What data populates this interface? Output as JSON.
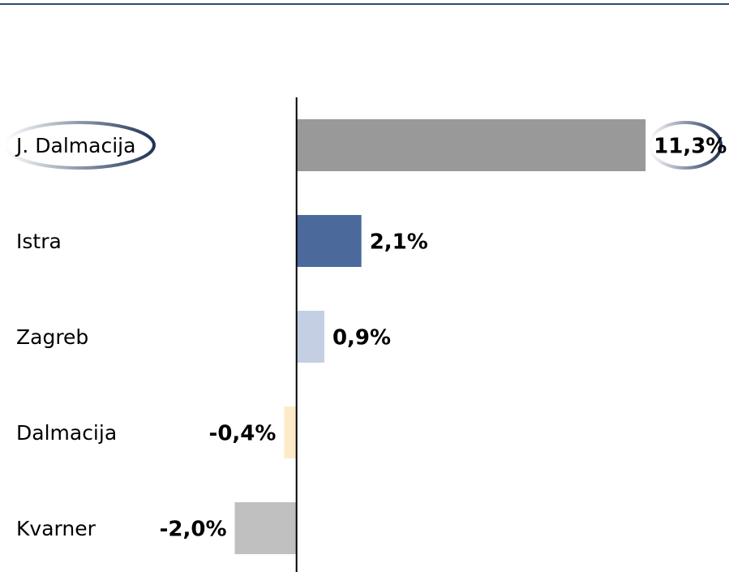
{
  "chart_data": {
    "type": "bar",
    "orientation": "horizontal",
    "categories": [
      "J. Dalmacija",
      "Istra",
      "Zagreb",
      "Dalmacija",
      "Kvarner"
    ],
    "values": [
      11.3,
      2.1,
      0.9,
      -0.4,
      -2.0
    ],
    "value_labels": [
      "11,3%",
      "2,1%",
      "0,9%",
      "-0,4%",
      "-2,0%"
    ],
    "colors": [
      "#999999",
      "#4b6a9b",
      "#c4cfe3",
      "#fdebc7",
      "#c0c0c0"
    ],
    "xlim": [
      -9.6,
      14
    ]
  }
}
